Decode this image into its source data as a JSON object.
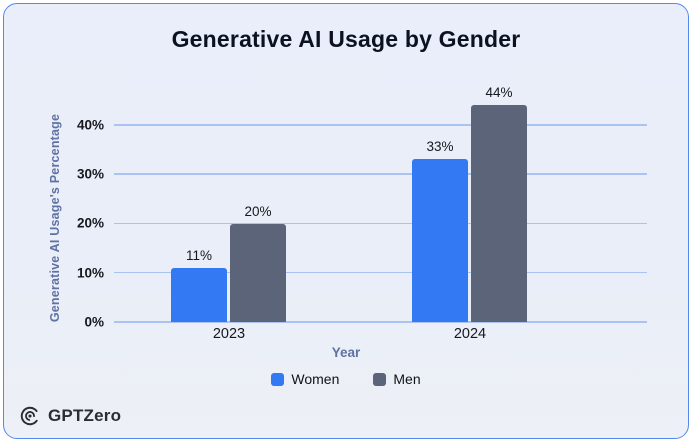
{
  "card": {
    "border_color": "#5488f0",
    "background": "#e9eefa"
  },
  "chart_data": {
    "type": "bar",
    "title": "Generative AI Usage by Gender",
    "categories": [
      "2023",
      "2024"
    ],
    "series": [
      {
        "name": "Women",
        "color": "#3379f4",
        "values": [
          11,
          33
        ]
      },
      {
        "name": "Men",
        "color": "#5c6479",
        "values": [
          20,
          44
        ]
      }
    ],
    "value_label_format": "percent",
    "xlabel": "Year",
    "ylabel": "Generative AI Usage's Percentage",
    "yticks": [
      "0%",
      "10%",
      "20%",
      "30%",
      "40%"
    ],
    "ytick_values": [
      0,
      10,
      20,
      30,
      40
    ],
    "ylim": [
      0,
      47.3
    ],
    "grid": true,
    "gridline_color": "#a9c4f2",
    "legend_position": "bottom"
  },
  "footer": {
    "brand": "GPTZero"
  }
}
